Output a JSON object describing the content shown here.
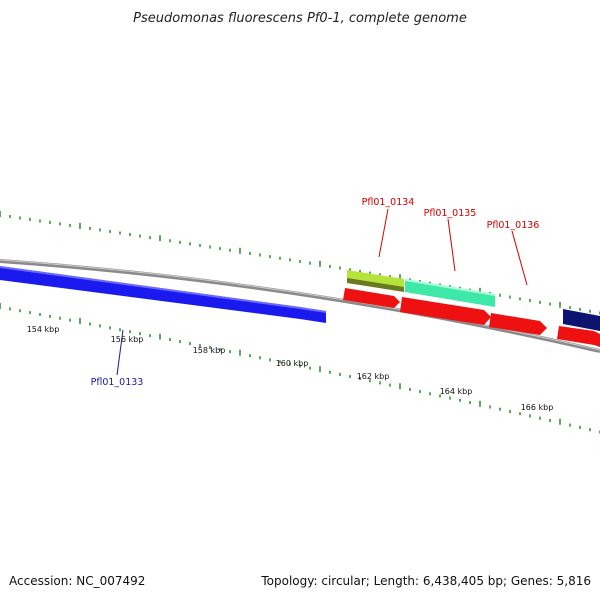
{
  "title": "Pseudomonas fluorescens Pf0-1, complete genome",
  "footer": {
    "accession": "Accession: NC_007492",
    "summary": "Topology: circular; Length: 6,438,405 bp; Genes: 5,816"
  },
  "colors": {
    "backbone": "#8a8a8a",
    "tick": "#2a8a2a",
    "forward_blue": "#1a1aee",
    "pf0134": "#b5e33a",
    "pf0135": "#3de8a8",
    "reverse_red": "#ee1111",
    "navy": "#0d1470",
    "label_red": "#d40000",
    "label_blue": "#1a1aaa"
  },
  "ticks": [
    {
      "label": "154 kbp"
    },
    {
      "label": "156 kbp"
    },
    {
      "label": "158 kbp"
    },
    {
      "label": "160 kbp"
    },
    {
      "label": "162 kbp"
    },
    {
      "label": "164 kbp"
    },
    {
      "label": "166 kbp"
    }
  ],
  "genes": [
    {
      "id": "Pfl01_0133",
      "strand": "forward",
      "color": "blue"
    },
    {
      "id": "Pfl01_0134",
      "strand": "forward",
      "color": "yellow-green"
    },
    {
      "id": "Pfl01_0135",
      "strand": "forward",
      "color": "aquamarine"
    },
    {
      "id": "Pfl01_0136",
      "strand": "reverse",
      "color": "red"
    }
  ]
}
